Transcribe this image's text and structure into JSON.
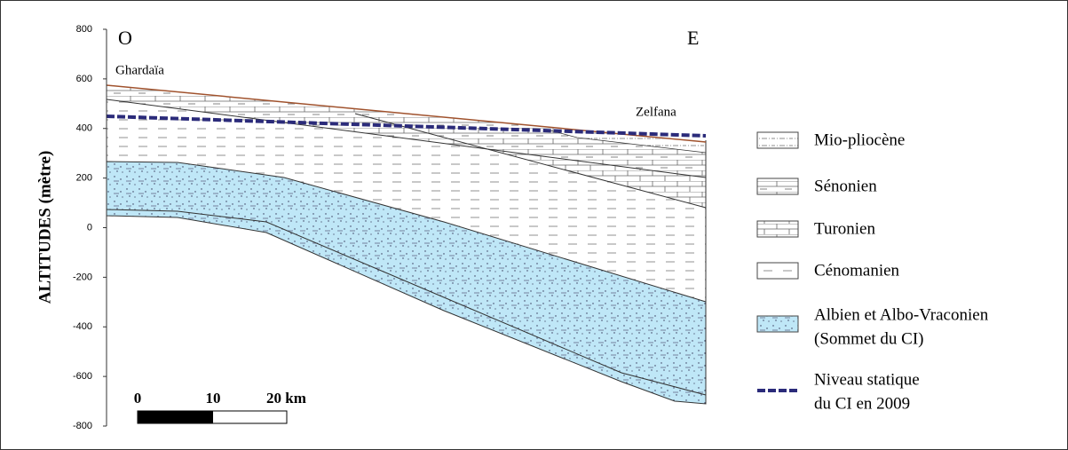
{
  "axis": {
    "label": "ALTITUDES (mètre)",
    "range": [
      -800,
      800
    ],
    "ticks": [
      800,
      600,
      400,
      200,
      0,
      -200,
      -400,
      -600,
      -800
    ]
  },
  "section": {
    "west": "O",
    "east": "E",
    "left_place": "Ghardaïa",
    "right_place": "Zelfana"
  },
  "scale_bar": {
    "labels": [
      "0",
      "10",
      "20 km"
    ]
  },
  "legend": [
    {
      "lines": [
        "Mio-pliocène"
      ]
    },
    {
      "lines": [
        "Sénonien"
      ]
    },
    {
      "lines": [
        "Turonien"
      ]
    },
    {
      "lines": [
        "Cénomanien"
      ]
    },
    {
      "lines": [
        "Albien et Albo-Vraconien",
        "(Sommet du CI)"
      ]
    },
    {
      "lines": [
        "Niveau statique",
        "du CI en 2009"
      ]
    }
  ]
}
